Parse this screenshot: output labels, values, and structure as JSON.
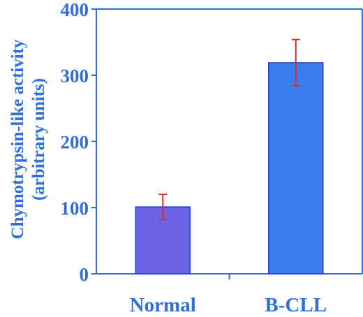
{
  "chart_data": {
    "type": "bar",
    "categories": [
      "Normal",
      "B-CLL"
    ],
    "values": [
      101,
      319
    ],
    "errors": [
      19,
      35
    ],
    "ylabel_lines": [
      "Chymotrypsin-like activity",
      "(arbitrary units)"
    ],
    "xlabel": "",
    "title": "",
    "ylim": [
      0,
      400
    ],
    "yticks": [
      0,
      100,
      200,
      300,
      400
    ],
    "grid": false,
    "legend": "none"
  },
  "colors": {
    "axis": "#2f6fd8",
    "text": "#2f6fd8",
    "bar_fill": [
      "#6a63e6",
      "#3b7cf0"
    ],
    "bar_stroke": "#1f3fc4",
    "error_bar": "#d92a2a"
  }
}
